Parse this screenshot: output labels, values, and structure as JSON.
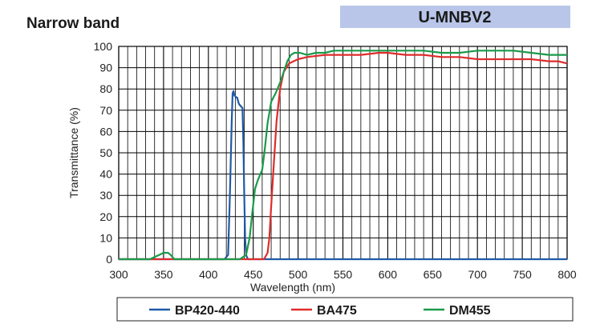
{
  "header": {
    "title": "Narrow band",
    "badge": "U-MNBV2",
    "badge_color": "#b9c6e9"
  },
  "chart_data": {
    "type": "line",
    "title": "U-MNBV2",
    "xlabel": "Wavelength (nm)",
    "ylabel": "Transmittance (%)",
    "xlim": [
      300,
      800
    ],
    "ylim": [
      0,
      100
    ],
    "xticks": [
      300,
      350,
      400,
      450,
      500,
      550,
      600,
      650,
      700,
      750,
      800
    ],
    "yticks": [
      0,
      10,
      20,
      30,
      40,
      50,
      60,
      70,
      80,
      90,
      100
    ],
    "x_tick_labels": [
      "300",
      "350",
      "400",
      "450",
      "500",
      "550",
      "600",
      "650",
      "700",
      "750",
      "800"
    ],
    "y_tick_labels": [
      "0",
      "10",
      "20",
      "30",
      "40",
      "50",
      "60",
      "70",
      "80",
      "90",
      "100"
    ],
    "grid": true,
    "legend": {
      "position": "bottom"
    },
    "series": [
      {
        "name": "BP420-440",
        "color": "#1f5aa6",
        "points": [
          [
            300,
            0
          ],
          [
            418,
            0
          ],
          [
            422,
            2
          ],
          [
            424,
            30
          ],
          [
            426,
            65
          ],
          [
            427,
            78
          ],
          [
            428,
            79
          ],
          [
            429,
            77
          ],
          [
            431,
            76
          ],
          [
            432,
            76
          ],
          [
            434,
            73
          ],
          [
            436,
            72
          ],
          [
            438,
            71
          ],
          [
            439,
            55
          ],
          [
            440,
            30
          ],
          [
            441,
            10
          ],
          [
            442,
            2
          ],
          [
            444,
            0
          ],
          [
            800,
            0
          ]
        ]
      },
      {
        "name": "BA475",
        "color": "#e02b2b",
        "points": [
          [
            300,
            0
          ],
          [
            462,
            0
          ],
          [
            466,
            3
          ],
          [
            468,
            10
          ],
          [
            470,
            25
          ],
          [
            473,
            45
          ],
          [
            476,
            65
          ],
          [
            480,
            80
          ],
          [
            484,
            88
          ],
          [
            490,
            92
          ],
          [
            500,
            94
          ],
          [
            510,
            95
          ],
          [
            530,
            96
          ],
          [
            550,
            96
          ],
          [
            570,
            96
          ],
          [
            590,
            97
          ],
          [
            600,
            97
          ],
          [
            620,
            96
          ],
          [
            640,
            96
          ],
          [
            660,
            95
          ],
          [
            680,
            95
          ],
          [
            700,
            94
          ],
          [
            720,
            94
          ],
          [
            740,
            94
          ],
          [
            760,
            94
          ],
          [
            780,
            93
          ],
          [
            790,
            93
          ],
          [
            800,
            92
          ]
        ]
      },
      {
        "name": "DM455",
        "color": "#1a9a4a",
        "points": [
          [
            300,
            0
          ],
          [
            335,
            0
          ],
          [
            340,
            1
          ],
          [
            345,
            2
          ],
          [
            350,
            3
          ],
          [
            355,
            3
          ],
          [
            358,
            2
          ],
          [
            362,
            0
          ],
          [
            420,
            0
          ],
          [
            435,
            0
          ],
          [
            442,
            2
          ],
          [
            446,
            10
          ],
          [
            449,
            22
          ],
          [
            452,
            33
          ],
          [
            455,
            37
          ],
          [
            458,
            40
          ],
          [
            460,
            42
          ],
          [
            463,
            52
          ],
          [
            466,
            64
          ],
          [
            470,
            74
          ],
          [
            475,
            78
          ],
          [
            480,
            83
          ],
          [
            484,
            88
          ],
          [
            488,
            93
          ],
          [
            492,
            96
          ],
          [
            496,
            97
          ],
          [
            502,
            97
          ],
          [
            510,
            96
          ],
          [
            520,
            97
          ],
          [
            530,
            97
          ],
          [
            540,
            98
          ],
          [
            550,
            98
          ],
          [
            560,
            98
          ],
          [
            580,
            98
          ],
          [
            600,
            98
          ],
          [
            620,
            98
          ],
          [
            640,
            98
          ],
          [
            660,
            97
          ],
          [
            680,
            97
          ],
          [
            700,
            98
          ],
          [
            720,
            98
          ],
          [
            740,
            98
          ],
          [
            760,
            97
          ],
          [
            780,
            96
          ],
          [
            800,
            96
          ]
        ]
      }
    ]
  }
}
